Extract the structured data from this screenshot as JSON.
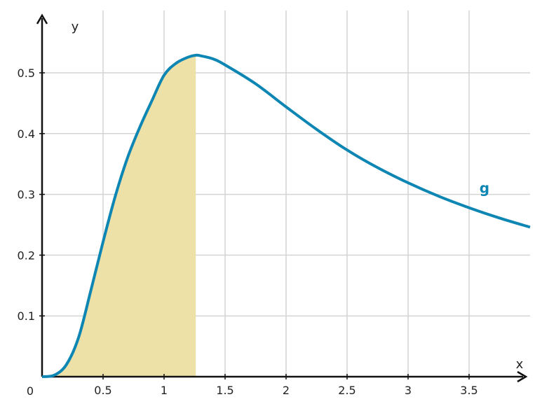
{
  "chart_data": {
    "type": "line",
    "xlabel": "x",
    "ylabel": "y",
    "origin_label": "0",
    "xlim": [
      0,
      4
    ],
    "ylim": [
      0,
      0.55
    ],
    "x_ticks": [
      0.5,
      1,
      1.5,
      2,
      2.5,
      3,
      3.5
    ],
    "x_tick_labels": [
      "0.5",
      "1",
      "1.5",
      "2",
      "2.5",
      "3",
      "3.5"
    ],
    "y_ticks": [
      0.1,
      0.2,
      0.3,
      0.4,
      0.5
    ],
    "y_tick_labels": [
      "0.1",
      "0.2",
      "0.3",
      "0.4",
      "0.5"
    ],
    "grid": true,
    "series": [
      {
        "name": "g",
        "color": "#0e86b4",
        "x": [
          0,
          0.1,
          0.2,
          0.3,
          0.4,
          0.5,
          0.6,
          0.7,
          0.8,
          0.9,
          1.0,
          1.1,
          1.2,
          1.26,
          1.3,
          1.4,
          1.5,
          1.75,
          2.0,
          2.25,
          2.5,
          2.75,
          3.0,
          3.25,
          3.5,
          3.75,
          4.0
        ],
        "y": [
          0,
          0.0025,
          0.02,
          0.065,
          0.142,
          0.222,
          0.297,
          0.36,
          0.41,
          0.454,
          0.496,
          0.516,
          0.526,
          0.529,
          0.528,
          0.523,
          0.513,
          0.482,
          0.444,
          0.407,
          0.373,
          0.344,
          0.319,
          0.297,
          0.278,
          0.261,
          0.246
        ]
      }
    ],
    "shaded_region": {
      "x_from": 0,
      "x_to": 1.26,
      "under_series": "g",
      "color": "#ede1a7"
    },
    "series_label_position": {
      "x": 3.2,
      "y": 0.3
    }
  }
}
